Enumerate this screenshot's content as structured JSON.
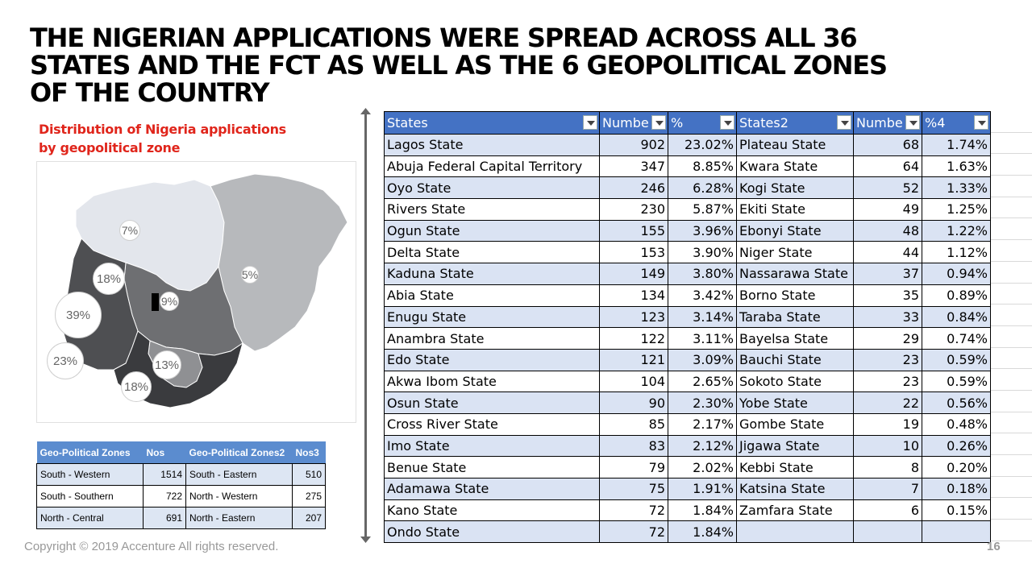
{
  "slide": {
    "title_lines": [
      "THE NIGERIAN APPLICATIONS WERE SPREAD ACROSS ALL 36",
      "STATES AND THE FCT AS WELL AS THE 6 GEOPOLITICAL ZONES",
      "OF THE COUNTRY"
    ],
    "footer": "Copyright © 2019 Accenture  All rights reserved.",
    "page_number": "16"
  },
  "map": {
    "title_lines": [
      "Distribution of Nigeria applications",
      "by geopolitical zone"
    ],
    "bubbles": [
      "7%",
      "18%",
      "5%",
      "9%",
      "39%",
      "23%",
      "13%",
      "18%"
    ],
    "zone_colors": {
      "north_western": "#e3e6ec",
      "north_eastern": "#b7b9bc",
      "north_central": "#6e6f72",
      "south_western": "#4e4f52",
      "south_eastern": "#8f9093",
      "south_southern": "#3a3b3e"
    }
  },
  "zones_table": {
    "headers": [
      "Geo-Political Zones",
      "Nos",
      "Geo-Political Zones2",
      "Nos3"
    ],
    "rows": [
      [
        "South - Western",
        "1514",
        "South - Eastern",
        "510"
      ],
      [
        "South - Southern",
        "722",
        "North - Western",
        "275"
      ],
      [
        "North - Central",
        "691",
        "North - Eastern",
        "207"
      ]
    ]
  },
  "states_table": {
    "headers": [
      "States",
      "Numbe",
      "%",
      "States2",
      "Numbe",
      "%4"
    ],
    "rows": [
      [
        "Lagos State",
        "902",
        "23.02%",
        "Plateau State",
        "68",
        "1.74%"
      ],
      [
        "Abuja Federal Capital Territory",
        "347",
        "8.85%",
        "Kwara State",
        "64",
        "1.63%"
      ],
      [
        "Oyo State",
        "246",
        "6.28%",
        "Kogi State",
        "52",
        "1.33%"
      ],
      [
        "Rivers State",
        "230",
        "5.87%",
        "Ekiti State",
        "49",
        "1.25%"
      ],
      [
        "Ogun State",
        "155",
        "3.96%",
        "Ebonyi State",
        "48",
        "1.22%"
      ],
      [
        "Delta State",
        "153",
        "3.90%",
        "Niger State",
        "44",
        "1.12%"
      ],
      [
        "Kaduna State",
        "149",
        "3.80%",
        "Nassarawa State",
        "37",
        "0.94%"
      ],
      [
        "Abia State",
        "134",
        "3.42%",
        "Borno State",
        "35",
        "0.89%"
      ],
      [
        "Enugu State",
        "123",
        "3.14%",
        "Taraba State",
        "33",
        "0.84%"
      ],
      [
        "Anambra State",
        "122",
        "3.11%",
        "Bayelsa State",
        "29",
        "0.74%"
      ],
      [
        "Edo State",
        "121",
        "3.09%",
        "Bauchi State",
        "23",
        "0.59%"
      ],
      [
        "Akwa Ibom State",
        "104",
        "2.65%",
        "Sokoto State",
        "23",
        "0.59%"
      ],
      [
        "Osun State",
        "90",
        "2.30%",
        "Yobe State",
        "22",
        "0.56%"
      ],
      [
        "Cross River State",
        "85",
        "2.17%",
        "Gombe State",
        "19",
        "0.48%"
      ],
      [
        "Imo State",
        "83",
        "2.12%",
        "Jigawa State",
        "10",
        "0.26%"
      ],
      [
        "Benue State",
        "79",
        "2.02%",
        "Kebbi State",
        "8",
        "0.20%"
      ],
      [
        "Adamawa State",
        "75",
        "1.91%",
        "Katsina State",
        "7",
        "0.18%"
      ],
      [
        "Kano State",
        "72",
        "1.84%",
        "Zamfara State",
        "6",
        "0.15%"
      ],
      [
        "Ondo State",
        "72",
        "1.84%",
        "",
        "",
        ""
      ]
    ]
  }
}
